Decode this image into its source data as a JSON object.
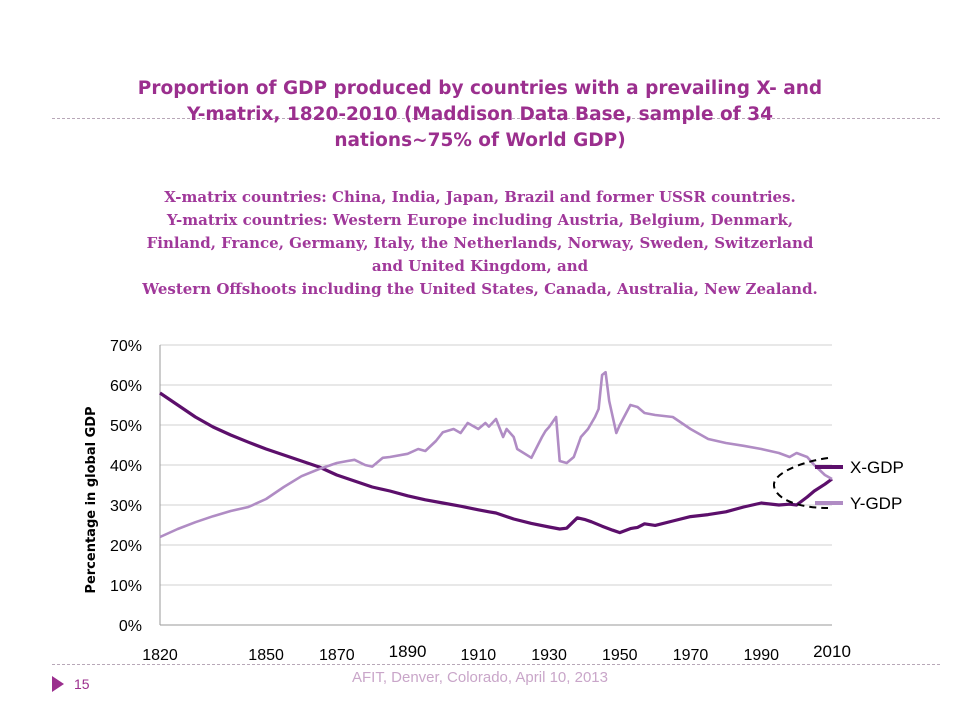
{
  "slide": {
    "title_lines": [
      "Proportion of GDP produced by countries  with a prevailing X- and",
      "Y-matrix, 1820-2010 (Maddison Data Base, sample of 34",
      "nations~75% of World GDP)"
    ],
    "subtitle_lines": [
      "X-matrix countries: China, India, Japan, Brazil and former USSR countries.",
      "Y-matrix countries:  Western Europe including Austria, Belgium, Denmark,",
      "Finland, France, Germany, Italy,  the Netherlands, Norway, Sweden, Switzerland",
      "and United Kingdom, and",
      "Western Offshoots including  the United States,  Canada,  Australia, New Zealand."
    ],
    "footer": "AFIT, Denver, Colorado, April 10,  2013",
    "page_number": "15"
  },
  "colors": {
    "x_series": "#5c0f6b",
    "y_series": "#b08cc4",
    "title": "#9b2f8e",
    "grid": "#d0d0d0"
  },
  "chart_data": {
    "type": "line",
    "title": "",
    "xlabel": "",
    "ylabel": "Percentage in global GDP",
    "xlim": [
      1820,
      2010
    ],
    "ylim": [
      0,
      0.7
    ],
    "y_ticks": [
      "0%",
      "10%",
      "20%",
      "30%",
      "40%",
      "50%",
      "60%",
      "70%"
    ],
    "x_ticks": [
      "1820",
      "1850",
      "1870",
      "1890",
      "1910",
      "1930",
      "1950",
      "1970",
      "1990",
      "2010"
    ],
    "grid": true,
    "legend_position": "right",
    "series": [
      {
        "name": "X-GDP",
        "x": [
          1820,
          1825,
          1830,
          1835,
          1840,
          1845,
          1850,
          1855,
          1860,
          1865,
          1870,
          1875,
          1880,
          1885,
          1890,
          1895,
          1900,
          1905,
          1910,
          1913,
          1915,
          1920,
          1925,
          1930,
          1933,
          1935,
          1938,
          1940,
          1942,
          1945,
          1948,
          1950,
          1953,
          1955,
          1957,
          1960,
          1965,
          1970,
          1975,
          1980,
          1985,
          1990,
          1995,
          1998,
          2000,
          2003,
          2005,
          2008,
          2010
        ],
        "y": [
          0.58,
          0.55,
          0.52,
          0.495,
          0.475,
          0.457,
          0.44,
          0.425,
          0.41,
          0.395,
          0.375,
          0.36,
          0.345,
          0.335,
          0.323,
          0.313,
          0.305,
          0.297,
          0.288,
          0.283,
          0.28,
          0.265,
          0.254,
          0.245,
          0.24,
          0.242,
          0.268,
          0.264,
          0.258,
          0.247,
          0.237,
          0.231,
          0.241,
          0.244,
          0.253,
          0.249,
          0.26,
          0.271,
          0.276,
          0.283,
          0.295,
          0.305,
          0.3,
          0.302,
          0.3,
          0.32,
          0.335,
          0.352,
          0.365
        ]
      },
      {
        "name": "Y-GDP",
        "x": [
          1820,
          1825,
          1830,
          1835,
          1840,
          1845,
          1850,
          1855,
          1860,
          1865,
          1870,
          1873,
          1875,
          1878,
          1880,
          1883,
          1885,
          1890,
          1893,
          1895,
          1898,
          1900,
          1903,
          1905,
          1907,
          1910,
          1912,
          1913,
          1915,
          1917,
          1918,
          1920,
          1921,
          1925,
          1928,
          1929,
          1930,
          1932,
          1933,
          1935,
          1937,
          1939,
          1941,
          1943,
          1944,
          1945,
          1946,
          1947,
          1949,
          1950,
          1953,
          1955,
          1957,
          1960,
          1965,
          1970,
          1975,
          1980,
          1985,
          1990,
          1995,
          1998,
          2000,
          2003,
          2005,
          2008,
          2010
        ],
        "y": [
          0.22,
          0.24,
          0.257,
          0.272,
          0.285,
          0.295,
          0.315,
          0.345,
          0.372,
          0.39,
          0.405,
          0.41,
          0.413,
          0.4,
          0.396,
          0.418,
          0.42,
          0.428,
          0.44,
          0.435,
          0.46,
          0.482,
          0.49,
          0.48,
          0.505,
          0.49,
          0.505,
          0.496,
          0.515,
          0.47,
          0.49,
          0.47,
          0.44,
          0.418,
          0.47,
          0.485,
          0.495,
          0.52,
          0.41,
          0.405,
          0.42,
          0.47,
          0.49,
          0.52,
          0.54,
          0.625,
          0.632,
          0.56,
          0.48,
          0.5,
          0.55,
          0.545,
          0.53,
          0.525,
          0.52,
          0.49,
          0.465,
          0.455,
          0.448,
          0.44,
          0.43,
          0.42,
          0.43,
          0.42,
          0.4,
          0.375,
          0.365
        ]
      }
    ]
  }
}
